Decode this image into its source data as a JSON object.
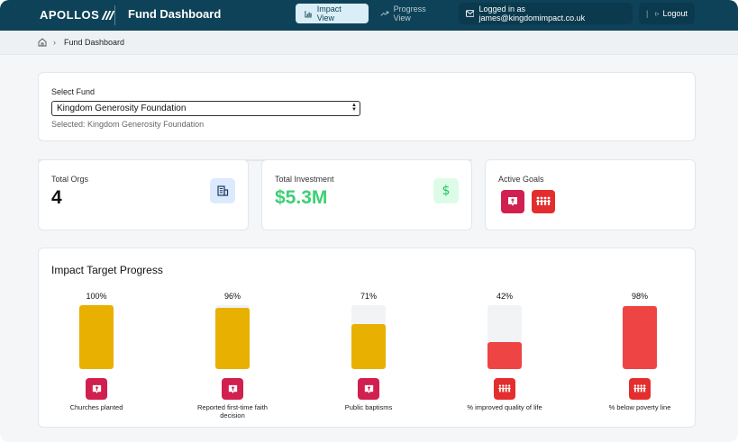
{
  "header": {
    "brand": "APOLLOS",
    "title": "Fund Dashboard",
    "nav": [
      {
        "label": "Impact View",
        "active": true
      },
      {
        "label": "Progress View",
        "active": false
      }
    ],
    "user_text": "Logged in as james@kingdomimpact.co.uk",
    "logout_label": "Logout"
  },
  "breadcrumb": {
    "current": "Fund Dashboard"
  },
  "fund": {
    "label": "Select Fund",
    "value": "Kingdom Generosity Foundation",
    "selected_text": "Selected: Kingdom Generosity Foundation"
  },
  "stats": {
    "orgs": {
      "label": "Total Orgs",
      "value": "4",
      "icon": "building-icon"
    },
    "investment": {
      "label": "Total Investment",
      "value": "$5.3M",
      "icon": "dollar-icon"
    },
    "goals": {
      "label": "Active Goals",
      "icons": [
        "church-icon",
        "people-icon"
      ]
    }
  },
  "progress": {
    "title": "Impact Target Progress",
    "bars": [
      {
        "pct_label": "100%",
        "fraction": 1.0,
        "color": "#e8b000",
        "icon": "church-icon",
        "icon_color": "#d11f4f",
        "label": "Churches planted"
      },
      {
        "pct_label": "96%",
        "fraction": 0.96,
        "color": "#e8b000",
        "icon": "church-icon",
        "icon_color": "#d11f4f",
        "label": "Reported first-time faith decision"
      },
      {
        "pct_label": "71%",
        "fraction": 0.71,
        "color": "#e8b000",
        "icon": "church-icon",
        "icon_color": "#d11f4f",
        "label": "Public baptisms"
      },
      {
        "pct_label": "42%",
        "fraction": 0.42,
        "color": "#ef4444",
        "icon": "people-icon",
        "icon_color": "#e42d2d",
        "label": "% improved quality of life"
      },
      {
        "pct_label": "98%",
        "fraction": 0.98,
        "color": "#ef4444",
        "icon": "people-icon",
        "icon_color": "#e42d2d",
        "label": "% below poverty line"
      }
    ]
  }
}
